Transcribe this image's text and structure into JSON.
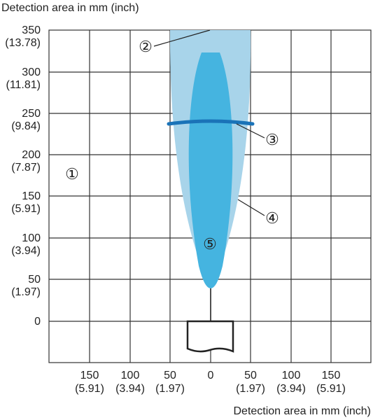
{
  "y_axis_title": "Detection area in mm (inch)",
  "x_axis_title": "Detection area in mm (inch)",
  "y_ticks": [
    {
      "mm": "350",
      "inch": "(13.78)"
    },
    {
      "mm": "300",
      "inch": "(11.81)"
    },
    {
      "mm": "250",
      "inch": "(9.84)"
    },
    {
      "mm": "200",
      "inch": "(7.87)"
    },
    {
      "mm": "150",
      "inch": "(5.91)"
    },
    {
      "mm": "100",
      "inch": "(3.94)"
    },
    {
      "mm": "50",
      "inch": "(1.97)"
    },
    {
      "mm": "0"
    }
  ],
  "x_ticks": [
    {
      "mm": "150",
      "inch": "(5.91)"
    },
    {
      "mm": "100",
      "inch": "(3.94)"
    },
    {
      "mm": "50",
      "inch": "(1.97)"
    },
    {
      "mm": "0"
    },
    {
      "mm": "50",
      "inch": "(1.97)"
    },
    {
      "mm": "100",
      "inch": "(3.94)"
    },
    {
      "mm": "150",
      "inch": "(5.91)"
    }
  ],
  "callouts": [
    "①",
    "②",
    "③",
    "④",
    "⑤"
  ]
}
